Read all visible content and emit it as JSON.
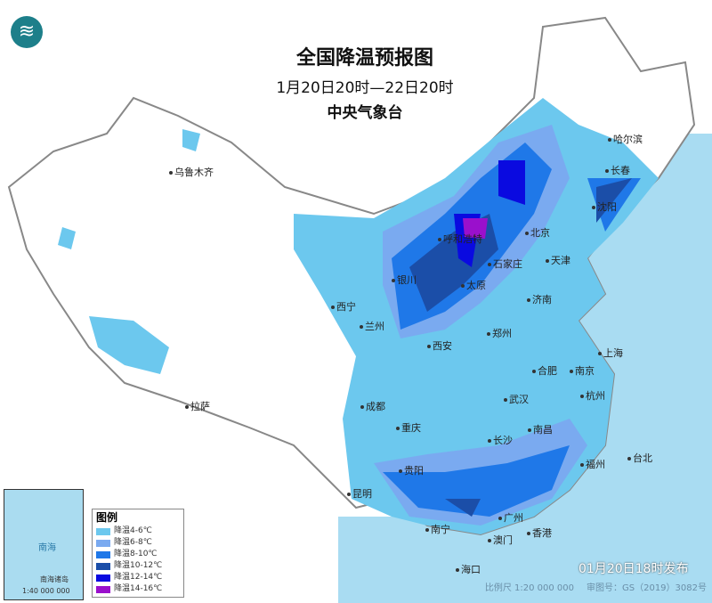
{
  "header": {
    "title": "全国降温预报图",
    "period": "1月20日20时—22日20时",
    "issuer": "中央气象台"
  },
  "logo": {
    "icon": "cma-logo"
  },
  "cities": [
    "乌鲁木齐",
    "哈尔滨",
    "长春",
    "沈阳",
    "呼和浩特",
    "北京",
    "天津",
    "银川",
    "太原",
    "石家庄",
    "西宁",
    "兰州",
    "济南",
    "西安",
    "郑州",
    "合肥",
    "南京",
    "上海",
    "拉萨",
    "成都",
    "武汉",
    "杭州",
    "重庆",
    "南昌",
    "长沙",
    "福州",
    "台北",
    "贵阳",
    "昆明",
    "南宁",
    "广州",
    "香港",
    "澳门",
    "海口"
  ],
  "legend": {
    "title": "图例",
    "items": [
      {
        "label": "降温4-6℃",
        "color": "#6cc8ee"
      },
      {
        "label": "降温6-8℃",
        "color": "#7aaaf0"
      },
      {
        "label": "降温8-10℃",
        "color": "#1f78e8"
      },
      {
        "label": "降温10-12℃",
        "color": "#1b4ea8"
      },
      {
        "label": "降温12-14℃",
        "color": "#0a0ae0"
      },
      {
        "label": "降温14-16℃",
        "color": "#9a10cc"
      }
    ]
  },
  "inset": {
    "title": "南海诸岛",
    "scale": "1:40 000 000",
    "sea": "南海"
  },
  "publish": "01月20日18时发布",
  "footer": {
    "scale": "比例尺 1:20 000 000",
    "approval": "审图号：GS（2019）3082号"
  }
}
